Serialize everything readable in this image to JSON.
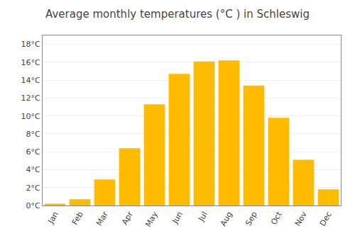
{
  "chart_data": {
    "type": "bar",
    "title": "Average monthly temperatures (°C ) in Schleswig",
    "categories": [
      "Jan",
      "Feb",
      "Mar",
      "Apr",
      "May",
      "Jun",
      "Jul",
      "Aug",
      "Sep",
      "Oct",
      "Nov",
      "Dec"
    ],
    "values": [
      0.2,
      0.7,
      2.9,
      6.4,
      11.3,
      14.7,
      16.1,
      16.2,
      13.4,
      9.8,
      5.1,
      1.8
    ],
    "color": "#FFBB00",
    "ylim": [
      0,
      19
    ],
    "yticks": [
      {
        "value": 0,
        "label": "0°C"
      },
      {
        "value": 2,
        "label": "2°C"
      },
      {
        "value": 4,
        "label": "4°C"
      },
      {
        "value": 6,
        "label": "6°C"
      },
      {
        "value": 8,
        "label": "8°C"
      },
      {
        "value": 10,
        "label": "10°C"
      },
      {
        "value": 12,
        "label": "12°C"
      },
      {
        "value": 14,
        "label": "14°C"
      },
      {
        "value": 16,
        "label": "16°C"
      },
      {
        "value": 18,
        "label": "18°C"
      }
    ],
    "grid": true
  }
}
